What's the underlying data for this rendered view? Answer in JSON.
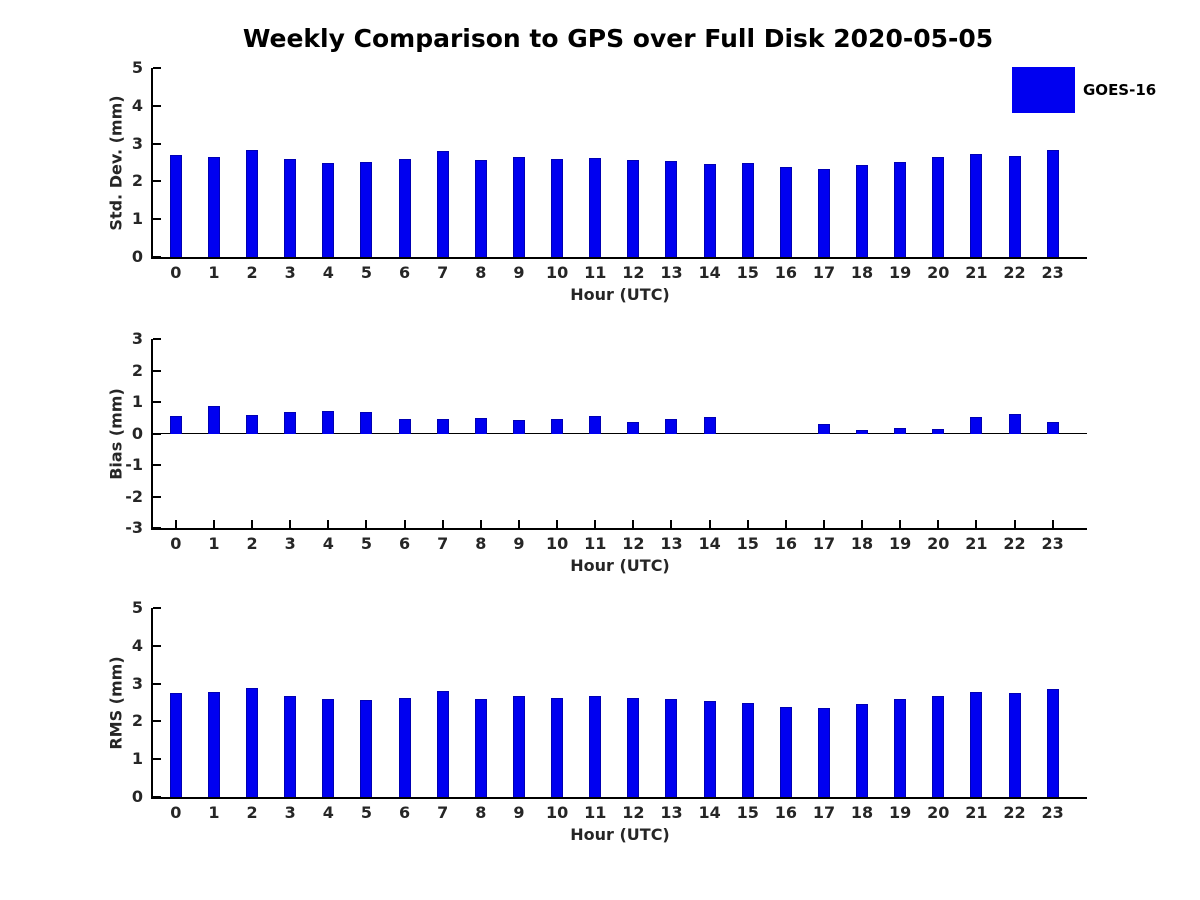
{
  "title": "Weekly Comparison to GPS over Full Disk 2020-05-05",
  "legend": {
    "label": "GOES-16",
    "swatch_color": "#0000f0"
  },
  "colors": {
    "bar": "#0000f0",
    "bar_edge": "#0000b4",
    "axis": "#000000",
    "tick_text": "#262626"
  },
  "chart_data": [
    {
      "type": "bar",
      "series_name": "GOES-16",
      "ylabel": "Std. Dev. (mm)",
      "xlabel": "Hour (UTC)",
      "ylim": [
        0,
        5
      ],
      "yticks": [
        0,
        1,
        2,
        3,
        4,
        5
      ],
      "xlim": [
        -0.6,
        23.9
      ],
      "categories": [
        "0",
        "1",
        "2",
        "3",
        "4",
        "5",
        "6",
        "7",
        "8",
        "9",
        "10",
        "11",
        "12",
        "13",
        "14",
        "15",
        "16",
        "17",
        "18",
        "19",
        "20",
        "21",
        "22",
        "23"
      ],
      "values": [
        2.7,
        2.65,
        2.82,
        2.6,
        2.48,
        2.52,
        2.6,
        2.8,
        2.56,
        2.65,
        2.6,
        2.62,
        2.57,
        2.55,
        2.47,
        2.5,
        2.38,
        2.33,
        2.43,
        2.52,
        2.65,
        2.72,
        2.68,
        2.83
      ],
      "grid": false,
      "legend_position": "upper right outside"
    },
    {
      "type": "bar",
      "series_name": "GOES-16",
      "ylabel": "Bias (mm)",
      "xlabel": "Hour (UTC)",
      "ylim": [
        -3,
        3
      ],
      "yticks": [
        -3,
        -2,
        -1,
        0,
        1,
        2,
        3
      ],
      "xlim": [
        -0.6,
        23.9
      ],
      "categories": [
        "0",
        "1",
        "2",
        "3",
        "4",
        "5",
        "6",
        "7",
        "8",
        "9",
        "10",
        "11",
        "12",
        "13",
        "14",
        "15",
        "16",
        "17",
        "18",
        "19",
        "20",
        "21",
        "22",
        "23"
      ],
      "values": [
        0.57,
        0.87,
        0.58,
        0.67,
        0.7,
        0.67,
        0.45,
        0.45,
        0.49,
        0.42,
        0.46,
        0.55,
        0.37,
        0.47,
        0.51,
        0.0,
        0.0,
        0.29,
        0.12,
        0.19,
        0.15,
        0.53,
        0.62,
        0.37
      ],
      "grid": false
    },
    {
      "type": "bar",
      "series_name": "GOES-16",
      "ylabel": "RMS (mm)",
      "xlabel": "Hour (UTC)",
      "ylim": [
        0,
        5
      ],
      "yticks": [
        0,
        1,
        2,
        3,
        4,
        5
      ],
      "xlim": [
        -0.6,
        23.9
      ],
      "categories": [
        "0",
        "1",
        "2",
        "3",
        "4",
        "5",
        "6",
        "7",
        "8",
        "9",
        "10",
        "11",
        "12",
        "13",
        "14",
        "15",
        "16",
        "17",
        "18",
        "19",
        "20",
        "21",
        "22",
        "23"
      ],
      "values": [
        2.75,
        2.78,
        2.88,
        2.68,
        2.6,
        2.57,
        2.62,
        2.8,
        2.6,
        2.67,
        2.63,
        2.67,
        2.61,
        2.58,
        2.54,
        2.49,
        2.39,
        2.36,
        2.46,
        2.58,
        2.67,
        2.77,
        2.74,
        2.87
      ],
      "grid": false
    }
  ]
}
